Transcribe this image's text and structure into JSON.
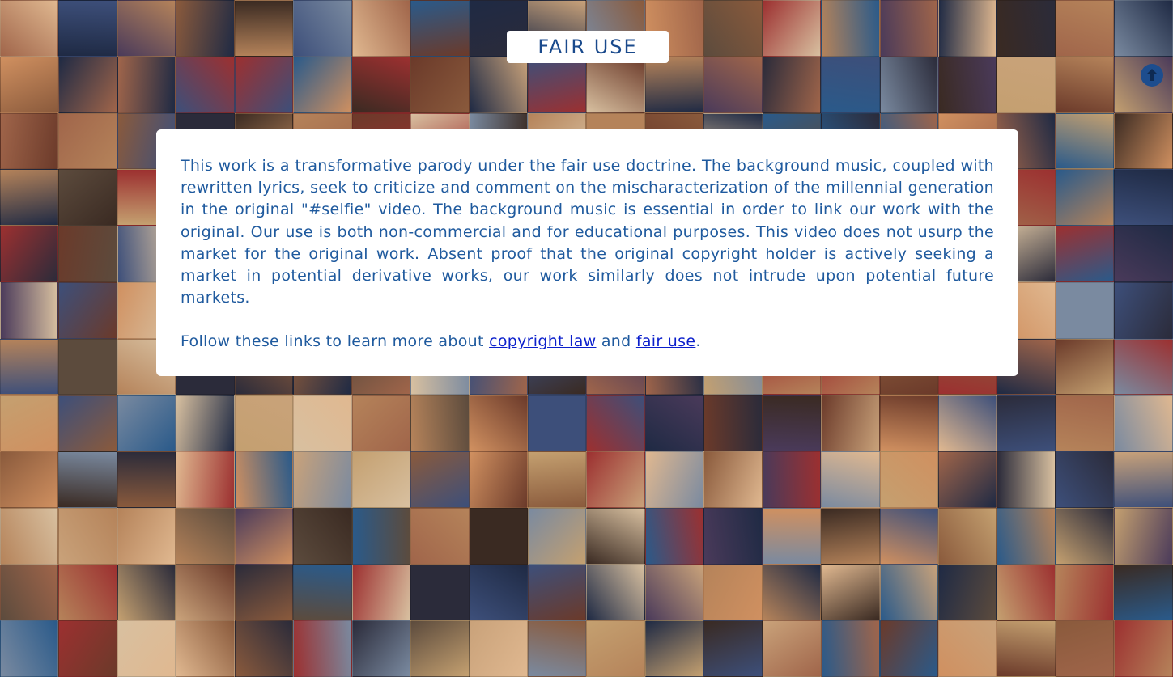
{
  "header": {
    "title": "FAIR USE"
  },
  "scroll_top": {
    "icon": "arrow-up-circle-icon"
  },
  "content": {
    "paragraph": "This work is a transformative parody under the fair use doctrine. The background music, coupled with rewritten lyrics, seek to criticize and comment on the mischaracterization of the millennial generation in the original \"#selfie\" video. The background music is essential in order to link our work with the original. Our use is both non-commercial and for educational purposes. This video does not usurp the market for the original work. Absent proof that the original copyright holder is actively seeking a market in potential derivative works, our work similarly does not intrude upon potential future markets.",
    "links_prefix": "Follow these links to learn more about ",
    "link_copyright": "copyright law",
    "links_middle": " and ",
    "link_fair_use": "fair use",
    "links_suffix": "."
  },
  "colors": {
    "title_text": "#1a4a8c",
    "body_text": "#1f5a9e",
    "link": "#0b1fcc",
    "button": "#1d4d8e"
  }
}
